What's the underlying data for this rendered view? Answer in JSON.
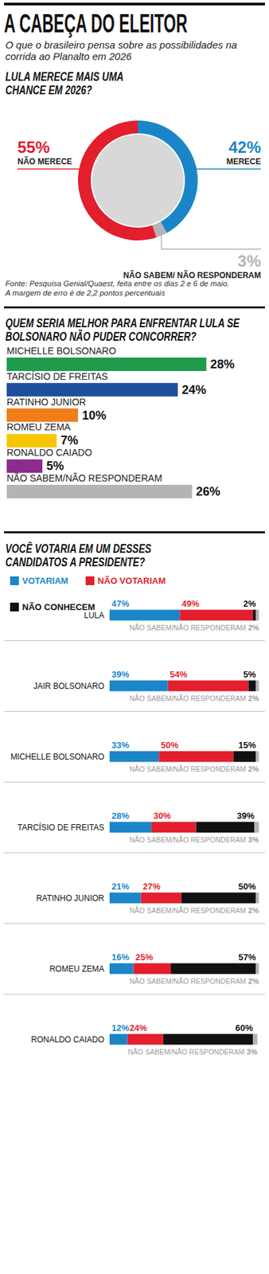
{
  "header": {
    "title": "A CABEÇA DO ELEITOR",
    "subtitle": "O que o brasileiro pensa sobre as possibilidades na corrida ao Planalto em 2026"
  },
  "chart_data": [
    {
      "type": "pie",
      "title": "LULA MERECE MAIS UMA CHANCE EM 2026?",
      "categories": [
        "MERECE",
        "NÃO SABEM/ NÃO RESPONDERAM",
        "NÃO MERECE"
      ],
      "values": [
        42,
        3,
        55
      ],
      "value_labels": [
        "42%",
        "3%",
        "55%"
      ],
      "colors": [
        "#1a86c8",
        "#b4b4b4",
        "#e31e2d"
      ],
      "data_labels": true,
      "annotations": [
        "Fonte: Pesquisa Genial/Quaest, feita entre os dias 2 e 6 de maio.",
        "A margem de erro é de 2,2 pontos percentuais"
      ]
    },
    {
      "type": "bar",
      "orientation": "horizontal",
      "title": "QUEM SERIA MELHOR PARA ENFRENTAR LULA SE BOLSONARO NÃO PUDER CONCORRER?",
      "categories": [
        "MICHELLE BOLSONARO",
        "TARCÍSIO DE FREITAS",
        "RATINHO JUNIOR",
        "ROMEU ZEMA",
        "RONALDO CAIADO",
        "NÃO SABEM/NÃO RESPONDERAM"
      ],
      "values": [
        28,
        24,
        10,
        7,
        5,
        26
      ],
      "value_labels": [
        "28%",
        "24%",
        "10%",
        "7%",
        "5%",
        "26%"
      ],
      "colors": [
        "#1e9b4b",
        "#1d4f9c",
        "#f07d1a",
        "#f7c600",
        "#8b2b8f",
        "#b4b4b4"
      ],
      "xlim": [
        0,
        30
      ],
      "grid": false,
      "data_labels": true,
      "tick_labels": "y"
    },
    {
      "type": "bar",
      "orientation": "horizontal",
      "stacked": true,
      "title": "VOCÊ VOTARIA EM UM DESSES CANDIDATOS A PRESIDENTE?",
      "categories": [
        "LULA",
        "JAIR BOLSONARO",
        "MICHELLE BOLSONARO",
        "TARCÍSIO DE FREITAS",
        "RATINHO JUNIOR",
        "ROMEU ZEMA",
        "RONALDO CAIADO"
      ],
      "series": [
        {
          "name": "VOTARIAM",
          "color": "#1a86c8",
          "values": [
            47,
            39,
            33,
            28,
            21,
            16,
            12
          ],
          "value_labels": [
            "47%",
            "39%",
            "33%",
            "28%",
            "21%",
            "16%",
            "12%"
          ]
        },
        {
          "name": "NÃO VOTARIAM",
          "color": "#e31e2d",
          "values": [
            49,
            54,
            50,
            30,
            27,
            25,
            24
          ],
          "value_labels": [
            "49%",
            "54%",
            "50%",
            "30%",
            "27%",
            "25%",
            "24%"
          ]
        },
        {
          "name": "NÃO CONHECEM",
          "color": "#111111",
          "values": [
            2,
            5,
            15,
            39,
            50,
            57,
            60
          ],
          "value_labels": [
            "2%",
            "5%",
            "15%",
            "39%",
            "50%",
            "57%",
            "60%"
          ]
        },
        {
          "name": "NÃO SABEM/NÃO RESPONDERAM",
          "color": "#b4b4b4",
          "values": [
            2,
            2,
            2,
            3,
            2,
            2,
            3
          ],
          "value_labels": [
            "2%",
            "2%",
            "2%",
            "3%",
            "2%",
            "2%",
            "3%"
          ],
          "legend": false
        }
      ],
      "xlim": [
        0,
        100
      ],
      "grid": false,
      "legend": "top left",
      "data_labels": true,
      "tick_labels": "y"
    }
  ]
}
